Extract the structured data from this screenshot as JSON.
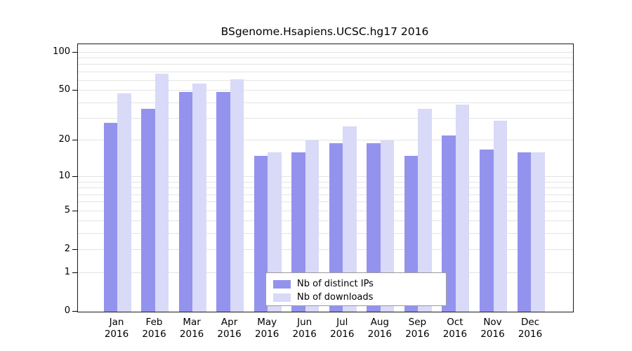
{
  "chart_data": {
    "type": "bar",
    "title": "BSgenome.Hsapiens.UCSC.hg17 2016",
    "categories": [
      "Jan",
      "Feb",
      "Mar",
      "Apr",
      "May",
      "Jun",
      "Jul",
      "Aug",
      "Sep",
      "Oct",
      "Nov",
      "Dec"
    ],
    "year_label": "2016",
    "series": [
      {
        "name": "Nb of distinct IPs",
        "color": "#9393ee",
        "values": [
          28,
          36,
          49,
          49,
          15,
          16,
          19,
          19,
          15,
          22,
          17,
          16
        ]
      },
      {
        "name": "Nb of downloads",
        "color": "#d9d9f8",
        "values": [
          48,
          68,
          57,
          62,
          16,
          20,
          26,
          20,
          36,
          39,
          29,
          16
        ]
      }
    ],
    "yscale": "log1p",
    "ylim": [
      0,
      116
    ],
    "yticks": [
      0,
      1,
      2,
      5,
      10,
      20,
      50,
      100
    ],
    "minor_gridlines": [
      3,
      4,
      6,
      7,
      8,
      9,
      30,
      40,
      60,
      70,
      80,
      90
    ],
    "grid": true,
    "legend_position": "bottom-center"
  }
}
